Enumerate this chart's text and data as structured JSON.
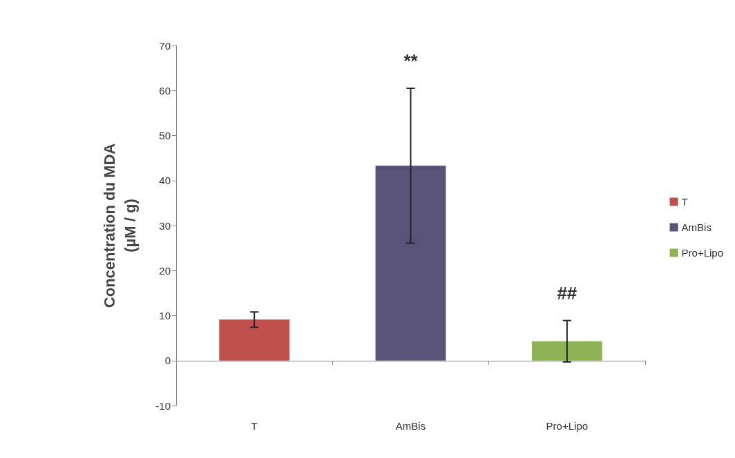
{
  "chart_data": {
    "type": "bar",
    "ylabel": "Concentration du MDA\n(µM / g)",
    "categories": [
      "T",
      "AmBis",
      "Pro+Lipo"
    ],
    "series": [
      {
        "name": "T",
        "color": "#c0504d",
        "values": [
          9.1,
          null,
          null
        ],
        "errors": [
          1.7,
          null,
          null
        ]
      },
      {
        "name": "AmBis",
        "color": "#5a5378",
        "values": [
          null,
          43.3,
          null
        ],
        "errors": [
          null,
          17.2,
          null
        ]
      },
      {
        "name": "Pro+Lipo",
        "color": "#8db356",
        "values": [
          null,
          null,
          4.3
        ],
        "errors": [
          null,
          null,
          4.6
        ]
      }
    ],
    "ylim": [
      -10,
      70
    ],
    "yticks": [
      -10,
      0,
      10,
      20,
      30,
      40,
      50,
      60,
      70
    ],
    "legend": "right",
    "annotations": [
      {
        "text": "**",
        "x": "AmBis",
        "y": 60.5
      },
      {
        "text": "##",
        "x": "Pro+Lipo",
        "y": 8.9
      }
    ]
  }
}
